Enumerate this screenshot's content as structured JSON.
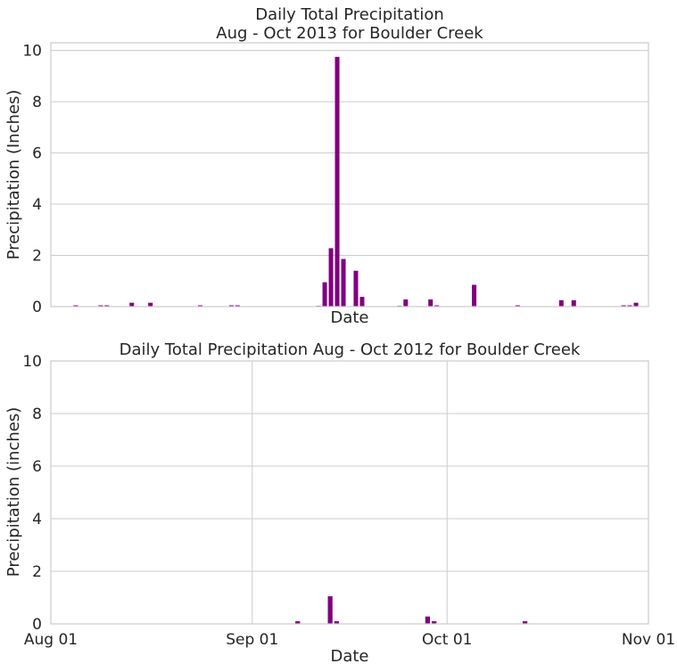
{
  "chart_data": [
    {
      "type": "bar",
      "title": "Daily Total Precipitation\nAug - Oct 2013 for Boulder Creek",
      "xlabel": "Date",
      "ylabel": "Precipitation (Inches)",
      "ylim": [
        0,
        10.3
      ],
      "yticks": [
        "0",
        "2",
        "4",
        "6",
        "8",
        "10"
      ],
      "xlim": [
        "2013-07-28",
        "2013-11-01"
      ],
      "x_tick_labels_shown": false,
      "grid": "horizontal",
      "bar_color": "#800080",
      "points": [
        {
          "x": "2013-08-01",
          "y": 0.05
        },
        {
          "x": "2013-08-05",
          "y": 0.05
        },
        {
          "x": "2013-08-06",
          "y": 0.05
        },
        {
          "x": "2013-08-10",
          "y": 0.15
        },
        {
          "x": "2013-08-13",
          "y": 0.15
        },
        {
          "x": "2013-08-21",
          "y": 0.05
        },
        {
          "x": "2013-08-26",
          "y": 0.05
        },
        {
          "x": "2013-08-27",
          "y": 0.05
        },
        {
          "x": "2013-09-09",
          "y": 0.03
        },
        {
          "x": "2013-09-10",
          "y": 0.95
        },
        {
          "x": "2013-09-11",
          "y": 2.28
        },
        {
          "x": "2013-09-12",
          "y": 9.75
        },
        {
          "x": "2013-09-13",
          "y": 1.86
        },
        {
          "x": "2013-09-15",
          "y": 1.4
        },
        {
          "x": "2013-09-16",
          "y": 0.38
        },
        {
          "x": "2013-09-22",
          "y": 0.03
        },
        {
          "x": "2013-09-23",
          "y": 0.28
        },
        {
          "x": "2013-09-27",
          "y": 0.28
        },
        {
          "x": "2013-09-28",
          "y": 0.05
        },
        {
          "x": "2013-10-04",
          "y": 0.85
        },
        {
          "x": "2013-10-11",
          "y": 0.05
        },
        {
          "x": "2013-10-18",
          "y": 0.25
        },
        {
          "x": "2013-10-20",
          "y": 0.25
        },
        {
          "x": "2013-10-28",
          "y": 0.05
        },
        {
          "x": "2013-10-29",
          "y": 0.05
        },
        {
          "x": "2013-10-30",
          "y": 0.15
        }
      ]
    },
    {
      "type": "bar",
      "title": "Daily Total Precipitation Aug - Oct 2012 for Boulder Creek",
      "xlabel": "Date",
      "ylabel": "Precipitation (inches)",
      "ylim": [
        0,
        10
      ],
      "yticks": [
        "0",
        "2",
        "4",
        "6",
        "8",
        "10"
      ],
      "xlim": [
        "2012-08-01",
        "2012-11-01"
      ],
      "xticks": [
        {
          "x": "2012-08-01",
          "label": "Aug 01"
        },
        {
          "x": "2012-09-01",
          "label": "Sep 01"
        },
        {
          "x": "2012-10-01",
          "label": "Oct 01"
        },
        {
          "x": "2012-11-01",
          "label": "Nov 01"
        }
      ],
      "grid": "both",
      "bar_color": "#800080",
      "points": [
        {
          "x": "2012-09-08",
          "y": 0.1
        },
        {
          "x": "2012-09-13",
          "y": 1.05
        },
        {
          "x": "2012-09-14",
          "y": 0.1
        },
        {
          "x": "2012-09-28",
          "y": 0.28
        },
        {
          "x": "2012-09-29",
          "y": 0.1
        },
        {
          "x": "2012-10-13",
          "y": 0.1
        }
      ]
    }
  ]
}
